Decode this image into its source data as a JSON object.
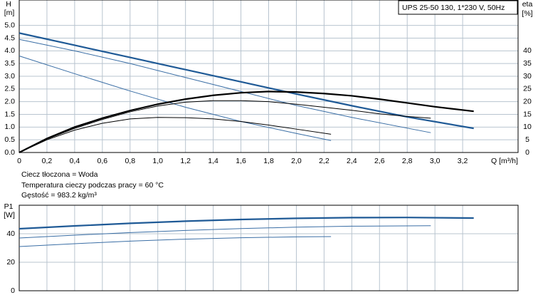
{
  "chart_data": [
    {
      "type": "line",
      "title": "UPS 25-50 130, 1*230 V, 50Hz",
      "y_label": "H",
      "y_unit": "[m]",
      "y2_label": "eta",
      "y2_unit": "[%]",
      "x_label": "Q [m³/h]",
      "notes": [
        "Ciecz tłoczona = Woda",
        "Temperatura cieczy podczas pracy = 60 °C",
        "Gęstość = 983.2 kg/m³"
      ],
      "xlim": [
        0,
        3.6
      ],
      "xticks": [
        0,
        {
          "value": 0.2,
          "label": "0,2"
        },
        {
          "value": 0.4,
          "label": "0,4"
        },
        {
          "value": 0.6,
          "label": "0,6"
        },
        {
          "value": 0.8,
          "label": "0,8"
        },
        {
          "value": 1.0,
          "label": "1,0"
        },
        {
          "value": 1.2,
          "label": "1,2"
        },
        {
          "value": 1.4,
          "label": "1,4"
        },
        {
          "value": 1.6,
          "label": "1,6"
        },
        {
          "value": 1.8,
          "label": "1,8"
        },
        {
          "value": 2.0,
          "label": "2,0"
        },
        {
          "value": 2.2,
          "label": "2,2"
        },
        {
          "value": 2.4,
          "label": "2,4"
        },
        {
          "value": 2.6,
          "label": "2,6"
        },
        {
          "value": 2.8,
          "label": "2,8"
        },
        {
          "value": 3.0,
          "label": "3,0"
        },
        {
          "value": 3.2,
          "label": "3,2"
        }
      ],
      "ylim": [
        0,
        6
      ],
      "yticks": [
        {
          "value": 0,
          "label": "0.0"
        },
        {
          "value": 0.5,
          "label": "0.5"
        },
        {
          "value": 1,
          "label": "1.0"
        },
        {
          "value": 1.5,
          "label": "1.5"
        },
        {
          "value": 2,
          "label": "2.0"
        },
        {
          "value": 2.5,
          "label": "2.5"
        },
        {
          "value": 3,
          "label": "3.0"
        },
        {
          "value": 3.5,
          "label": "3.5"
        },
        {
          "value": 4,
          "label": "4.0"
        },
        {
          "value": 4.5,
          "label": "4.5"
        },
        {
          "value": 5,
          "label": "5.0"
        }
      ],
      "y2lim": [
        0,
        60
      ],
      "y2ticks": [
        0,
        5,
        10,
        15,
        20,
        25,
        30,
        35,
        40
      ],
      "grid": true,
      "series": [
        {
          "color": "#1f5a96",
          "line_width": 2.2,
          "x": [
            0,
            0.4,
            0.8,
            1.2,
            1.6,
            2.0,
            2.4,
            2.8,
            3.28
          ],
          "values": [
            4.7,
            4.22,
            3.74,
            3.26,
            2.78,
            2.3,
            1.84,
            1.4,
            0.95
          ]
        },
        {
          "color": "#3a6ea5",
          "line_width": 1,
          "x": [
            0,
            0.4,
            0.8,
            1.2,
            1.6,
            2.0,
            2.4,
            2.97
          ],
          "values": [
            4.45,
            4.0,
            3.5,
            2.95,
            2.4,
            1.85,
            1.38,
            0.78
          ]
        },
        {
          "color": "#3a6ea5",
          "line_width": 1,
          "x": [
            0,
            0.4,
            0.8,
            1.2,
            1.6,
            2.0,
            2.25
          ],
          "values": [
            3.8,
            3.1,
            2.42,
            1.78,
            1.22,
            0.75,
            0.47
          ]
        },
        {
          "color": "#000000",
          "line_width": 2.2,
          "axis": "y2",
          "x": [
            0,
            0.2,
            0.4,
            0.6,
            0.8,
            1.0,
            1.2,
            1.4,
            1.6,
            1.8,
            2.0,
            2.2,
            2.4,
            2.6,
            2.8,
            3.0,
            3.28
          ],
          "values": [
            0,
            5.5,
            10,
            13.5,
            16.5,
            19,
            21,
            22.5,
            23.5,
            24,
            23.8,
            23.2,
            22.3,
            21,
            19.5,
            18,
            16.2
          ]
        },
        {
          "color": "#000000",
          "line_width": 1,
          "axis": "y2",
          "x": [
            0,
            0.2,
            0.4,
            0.6,
            0.8,
            1.0,
            1.2,
            1.4,
            1.6,
            1.8,
            2.0,
            2.2,
            2.4,
            2.6,
            2.8,
            2.97
          ],
          "values": [
            0,
            5.3,
            9.5,
            13,
            16,
            18.3,
            19.8,
            20.4,
            20.4,
            20,
            19,
            17.8,
            16.6,
            15.2,
            14.2,
            13.5
          ]
        },
        {
          "color": "#000000",
          "line_width": 1,
          "axis": "y2",
          "x": [
            0,
            0.2,
            0.4,
            0.6,
            0.8,
            1.0,
            1.2,
            1.4,
            1.6,
            1.8,
            2.0,
            2.25
          ],
          "values": [
            0,
            5,
            8.8,
            11.5,
            13.2,
            13.8,
            13.7,
            13.2,
            12.2,
            10.8,
            9.2,
            7.2
          ]
        }
      ]
    },
    {
      "type": "line",
      "y_label": "P1",
      "y_unit": "[W]",
      "xlim": [
        0,
        3.6
      ],
      "xticks": [
        0,
        0.2,
        0.4,
        0.6,
        0.8,
        1.0,
        1.2,
        1.4,
        1.6,
        1.8,
        2.0,
        2.2,
        2.4,
        2.6,
        2.8,
        3.0,
        3.2
      ],
      "ylim": [
        0,
        60
      ],
      "yticks": [
        0,
        20,
        40
      ],
      "grid": true,
      "series": [
        {
          "color": "#1f5a96",
          "line_width": 2.2,
          "x": [
            0,
            0.4,
            0.8,
            1.2,
            1.6,
            2.0,
            2.4,
            2.8,
            3.28
          ],
          "values": [
            43.5,
            45.5,
            47.3,
            48.8,
            50,
            50.8,
            51.3,
            51.4,
            51
          ]
        },
        {
          "color": "#3a6ea5",
          "line_width": 1,
          "x": [
            0,
            0.4,
            0.8,
            1.2,
            1.6,
            2.0,
            2.4,
            2.97
          ],
          "values": [
            37,
            39,
            40.8,
            42.3,
            43.6,
            44.6,
            45.3,
            45.6
          ]
        },
        {
          "color": "#3a6ea5",
          "line_width": 1,
          "x": [
            0,
            0.4,
            0.8,
            1.2,
            1.6,
            2.0,
            2.25
          ],
          "values": [
            31,
            33,
            34.8,
            36.2,
            37.2,
            37.8,
            38
          ]
        }
      ]
    }
  ]
}
